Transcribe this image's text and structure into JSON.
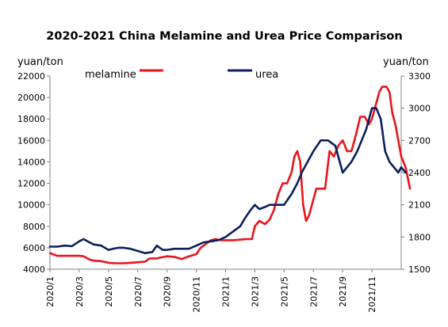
{
  "chart_data": {
    "type": "line",
    "title": "2020-2021 China Melamine and Urea Price Comparison",
    "left_unit": "yuan/ton",
    "right_unit": "yuan/ton",
    "y_left": {
      "min": 4000,
      "max": 22000,
      "ticks": [
        "4000",
        "6000",
        "8000",
        "10000",
        "12000",
        "14000",
        "16000",
        "18000",
        "20000",
        "22000"
      ]
    },
    "y_right": {
      "min": 1500,
      "max": 3300,
      "ticks": [
        "1500",
        "1800",
        "2100",
        "2400",
        "2700",
        "3000",
        "3300"
      ]
    },
    "x_range": [
      0,
      24
    ],
    "x_ticks": [
      {
        "pos": 0,
        "label": "2020/1"
      },
      {
        "pos": 2,
        "label": "2020/3"
      },
      {
        "pos": 4,
        "label": "2020/5"
      },
      {
        "pos": 6,
        "label": "2020/7"
      },
      {
        "pos": 8,
        "label": "2020/9"
      },
      {
        "pos": 10,
        "label": "2020/11"
      },
      {
        "pos": 12,
        "label": "2021/1"
      },
      {
        "pos": 14,
        "label": "2021/3"
      },
      {
        "pos": 16,
        "label": "2021/5"
      },
      {
        "pos": 18,
        "label": "2021/7"
      },
      {
        "pos": 20,
        "label": "2021/9"
      },
      {
        "pos": 22,
        "label": "2021/11"
      }
    ],
    "legend_position": "top",
    "grid": false,
    "series": [
      {
        "name": "melamine",
        "axis": "left",
        "color": "#e8141b",
        "points": [
          [
            0,
            5500
          ],
          [
            0.5,
            5250
          ],
          [
            1,
            5250
          ],
          [
            1.5,
            5250
          ],
          [
            2,
            5250
          ],
          [
            2.3,
            5200
          ],
          [
            2.7,
            4900
          ],
          [
            3,
            4800
          ],
          [
            3.5,
            4750
          ],
          [
            4,
            4600
          ],
          [
            4.5,
            4550
          ],
          [
            5,
            4550
          ],
          [
            5.5,
            4600
          ],
          [
            6,
            4650
          ],
          [
            6.5,
            4700
          ],
          [
            6.8,
            5000
          ],
          [
            7.3,
            5000
          ],
          [
            7.6,
            5100
          ],
          [
            8,
            5200
          ],
          [
            8.5,
            5150
          ],
          [
            9,
            4950
          ],
          [
            9.5,
            5200
          ],
          [
            10,
            5400
          ],
          [
            10.3,
            6000
          ],
          [
            10.7,
            6400
          ],
          [
            11,
            6700
          ],
          [
            11.3,
            6800
          ],
          [
            11.7,
            6700
          ],
          [
            12,
            6700
          ],
          [
            12.5,
            6700
          ],
          [
            13,
            6750
          ],
          [
            13.4,
            6800
          ],
          [
            13.8,
            6800
          ],
          [
            14,
            8000
          ],
          [
            14.3,
            8500
          ],
          [
            14.7,
            8200
          ],
          [
            15,
            8600
          ],
          [
            15.3,
            9500
          ],
          [
            15.6,
            11000
          ],
          [
            15.9,
            12000
          ],
          [
            16.2,
            12000
          ],
          [
            16.5,
            13000
          ],
          [
            16.7,
            14500
          ],
          [
            16.9,
            15000
          ],
          [
            17.1,
            14000
          ],
          [
            17.3,
            10000
          ],
          [
            17.5,
            8500
          ],
          [
            17.7,
            9000
          ],
          [
            17.9,
            10000
          ],
          [
            18.2,
            11500
          ],
          [
            18.5,
            11500
          ],
          [
            18.8,
            11500
          ],
          [
            19.1,
            15000
          ],
          [
            19.4,
            14500
          ],
          [
            19.7,
            15500
          ],
          [
            20,
            16000
          ],
          [
            20.3,
            15000
          ],
          [
            20.6,
            15000
          ],
          [
            20.9,
            16500
          ],
          [
            21.2,
            18200
          ],
          [
            21.5,
            18200
          ],
          [
            21.8,
            17500
          ],
          [
            22,
            18000
          ],
          [
            22.2,
            19000
          ],
          [
            22.5,
            20500
          ],
          [
            22.7,
            21000
          ],
          [
            23,
            21000
          ],
          [
            23.2,
            20500
          ],
          [
            23.4,
            18500
          ],
          [
            23.6,
            17500
          ],
          [
            23.8,
            16000
          ],
          [
            24,
            14500
          ],
          [
            24.3,
            13500
          ],
          [
            24.6,
            11500
          ]
        ]
      },
      {
        "name": "urea",
        "axis": "right",
        "color": "#0b1f5c",
        "points": [
          [
            0,
            1710
          ],
          [
            0.5,
            1710
          ],
          [
            1,
            1720
          ],
          [
            1.5,
            1715
          ],
          [
            2,
            1760
          ],
          [
            2.3,
            1780
          ],
          [
            2.7,
            1750
          ],
          [
            3,
            1730
          ],
          [
            3.5,
            1720
          ],
          [
            4,
            1680
          ],
          [
            4.3,
            1690
          ],
          [
            4.7,
            1700
          ],
          [
            5,
            1700
          ],
          [
            5.5,
            1690
          ],
          [
            6,
            1670
          ],
          [
            6.5,
            1650
          ],
          [
            7,
            1660
          ],
          [
            7.3,
            1720
          ],
          [
            7.7,
            1680
          ],
          [
            8,
            1680
          ],
          [
            8.5,
            1690
          ],
          [
            9,
            1690
          ],
          [
            9.5,
            1690
          ],
          [
            10,
            1720
          ],
          [
            10.5,
            1750
          ],
          [
            11,
            1760
          ],
          [
            11.5,
            1770
          ],
          [
            12,
            1800
          ],
          [
            12.5,
            1850
          ],
          [
            13,
            1900
          ],
          [
            13.3,
            1970
          ],
          [
            13.7,
            2050
          ],
          [
            14,
            2100
          ],
          [
            14.3,
            2060
          ],
          [
            14.7,
            2080
          ],
          [
            15,
            2100
          ],
          [
            15.5,
            2100
          ],
          [
            16,
            2100
          ],
          [
            16.5,
            2200
          ],
          [
            16.9,
            2300
          ],
          [
            17.2,
            2400
          ],
          [
            17.6,
            2500
          ],
          [
            18,
            2600
          ],
          [
            18.5,
            2700
          ],
          [
            19,
            2700
          ],
          [
            19.5,
            2650
          ],
          [
            20,
            2400
          ],
          [
            20.3,
            2450
          ],
          [
            20.6,
            2500
          ],
          [
            21,
            2600
          ],
          [
            21.3,
            2700
          ],
          [
            21.6,
            2800
          ],
          [
            22,
            3000
          ],
          [
            22.3,
            3000
          ],
          [
            22.6,
            2900
          ],
          [
            22.9,
            2600
          ],
          [
            23.2,
            2500
          ],
          [
            23.5,
            2450
          ],
          [
            23.8,
            2400
          ],
          [
            24,
            2450
          ],
          [
            24.3,
            2400
          ]
        ]
      }
    ]
  }
}
